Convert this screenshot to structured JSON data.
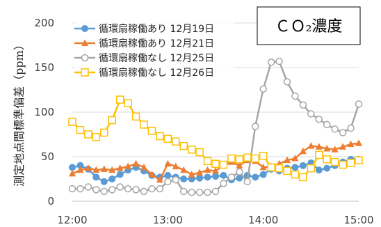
{
  "chart_data": {
    "type": "line",
    "title": "ＣＯ₂濃度",
    "ylabel": "測定地点間標準偏差（ppm）",
    "xlabel": "",
    "ylim": [
      0,
      200
    ],
    "yticks": [
      0,
      50,
      100,
      150,
      200
    ],
    "xlim": [
      "12:00",
      "15:00"
    ],
    "xticks": [
      "12:00",
      "13:00",
      "14:00",
      "15:00"
    ],
    "grid": "horizontal",
    "legend": "top-left",
    "series": [
      {
        "name": "循環扇稼働あり 12月19日",
        "color": "#5B9BD5",
        "marker": "circle-filled",
        "x": [
          "12:00",
          "12:05",
          "12:10",
          "12:15",
          "12:20",
          "12:25",
          "12:30",
          "12:35",
          "12:40",
          "12:45",
          "12:50",
          "12:55",
          "13:00",
          "13:05",
          "13:10",
          "13:15",
          "13:20",
          "13:25",
          "13:30",
          "13:35",
          "13:40",
          "13:45",
          "13:50",
          "13:55",
          "14:00",
          "14:05",
          "14:10",
          "14:15",
          "14:20",
          "14:25",
          "14:30",
          "14:35",
          "14:40",
          "14:45",
          "14:50",
          "14:55",
          "15:00"
        ],
        "values": [
          38,
          40,
          36,
          27,
          22,
          25,
          30,
          35,
          38,
          34,
          29,
          27,
          29,
          27,
          25,
          25,
          26,
          27,
          28,
          29,
          24,
          26,
          29,
          27,
          30,
          36,
          34,
          37,
          38,
          40,
          43,
          35,
          37,
          40,
          44,
          47,
          47
        ]
      },
      {
        "name": "循環扇稼働あり 12月21日",
        "color": "#ED7D31",
        "marker": "triangle-filled",
        "x": [
          "12:00",
          "12:05",
          "12:10",
          "12:15",
          "12:20",
          "12:25",
          "12:30",
          "12:35",
          "12:40",
          "12:45",
          "12:50",
          "12:55",
          "13:00",
          "13:05",
          "13:10",
          "13:15",
          "13:20",
          "13:25",
          "13:30",
          "13:35",
          "13:40",
          "13:45",
          "13:50",
          "13:55",
          "14:00",
          "14:05",
          "14:10",
          "14:15",
          "14:20",
          "14:25",
          "14:30",
          "14:35",
          "14:40",
          "14:45",
          "14:50",
          "14:55",
          "15:00"
        ],
        "values": [
          31,
          35,
          37,
          35,
          36,
          35,
          37,
          39,
          42,
          38,
          30,
          24,
          42,
          39,
          35,
          30,
          32,
          35,
          34,
          40,
          44,
          40,
          46,
          45,
          38,
          39,
          42,
          46,
          48,
          56,
          62,
          61,
          59,
          58,
          61,
          64,
          65
        ]
      },
      {
        "name": "循環扇稼働なし 12月25日",
        "color": "#A5A5A5",
        "marker": "circle-open",
        "x": [
          "12:00",
          "12:05",
          "12:10",
          "12:15",
          "12:20",
          "12:25",
          "12:30",
          "12:35",
          "12:40",
          "12:45",
          "12:50",
          "12:55",
          "13:00",
          "13:05",
          "13:10",
          "13:15",
          "13:20",
          "13:25",
          "13:30",
          "13:35",
          "13:40",
          "13:45",
          "13:50",
          "13:55",
          "14:00",
          "14:05",
          "14:10",
          "14:15",
          "14:20",
          "14:25",
          "14:30",
          "14:35",
          "14:40",
          "14:45",
          "14:50",
          "14:55",
          "15:00"
        ],
        "values": [
          14,
          14,
          16,
          13,
          11,
          13,
          16,
          14,
          13,
          11,
          14,
          14,
          22,
          24,
          11,
          10,
          10,
          10,
          11,
          20,
          27,
          33,
          22,
          84,
          126,
          156,
          157,
          134,
          118,
          108,
          98,
          92,
          86,
          81,
          77,
          82,
          109
        ]
      },
      {
        "name": "循環扇稼働なし 12月26日",
        "color": "#FFC000",
        "marker": "square-open",
        "x": [
          "12:00",
          "12:05",
          "12:10",
          "12:15",
          "12:20",
          "12:25",
          "12:30",
          "12:35",
          "12:40",
          "12:45",
          "12:50",
          "12:55",
          "13:00",
          "13:05",
          "13:10",
          "13:15",
          "13:20",
          "13:25",
          "13:30",
          "13:35",
          "13:40",
          "13:45",
          "13:50",
          "13:55",
          "14:00",
          "14:05",
          "14:10",
          "14:15",
          "14:20",
          "14:25",
          "14:30",
          "14:35",
          "14:40",
          "14:45",
          "14:50",
          "14:55",
          "15:00"
        ],
        "values": [
          89,
          80,
          75,
          72,
          77,
          91,
          114,
          110,
          95,
          86,
          79,
          73,
          70,
          67,
          62,
          58,
          55,
          45,
          42,
          41,
          48,
          47,
          49,
          48,
          51,
          38,
          37,
          34,
          30,
          27,
          37,
          52,
          47,
          44,
          41,
          43,
          46
        ]
      }
    ]
  }
}
